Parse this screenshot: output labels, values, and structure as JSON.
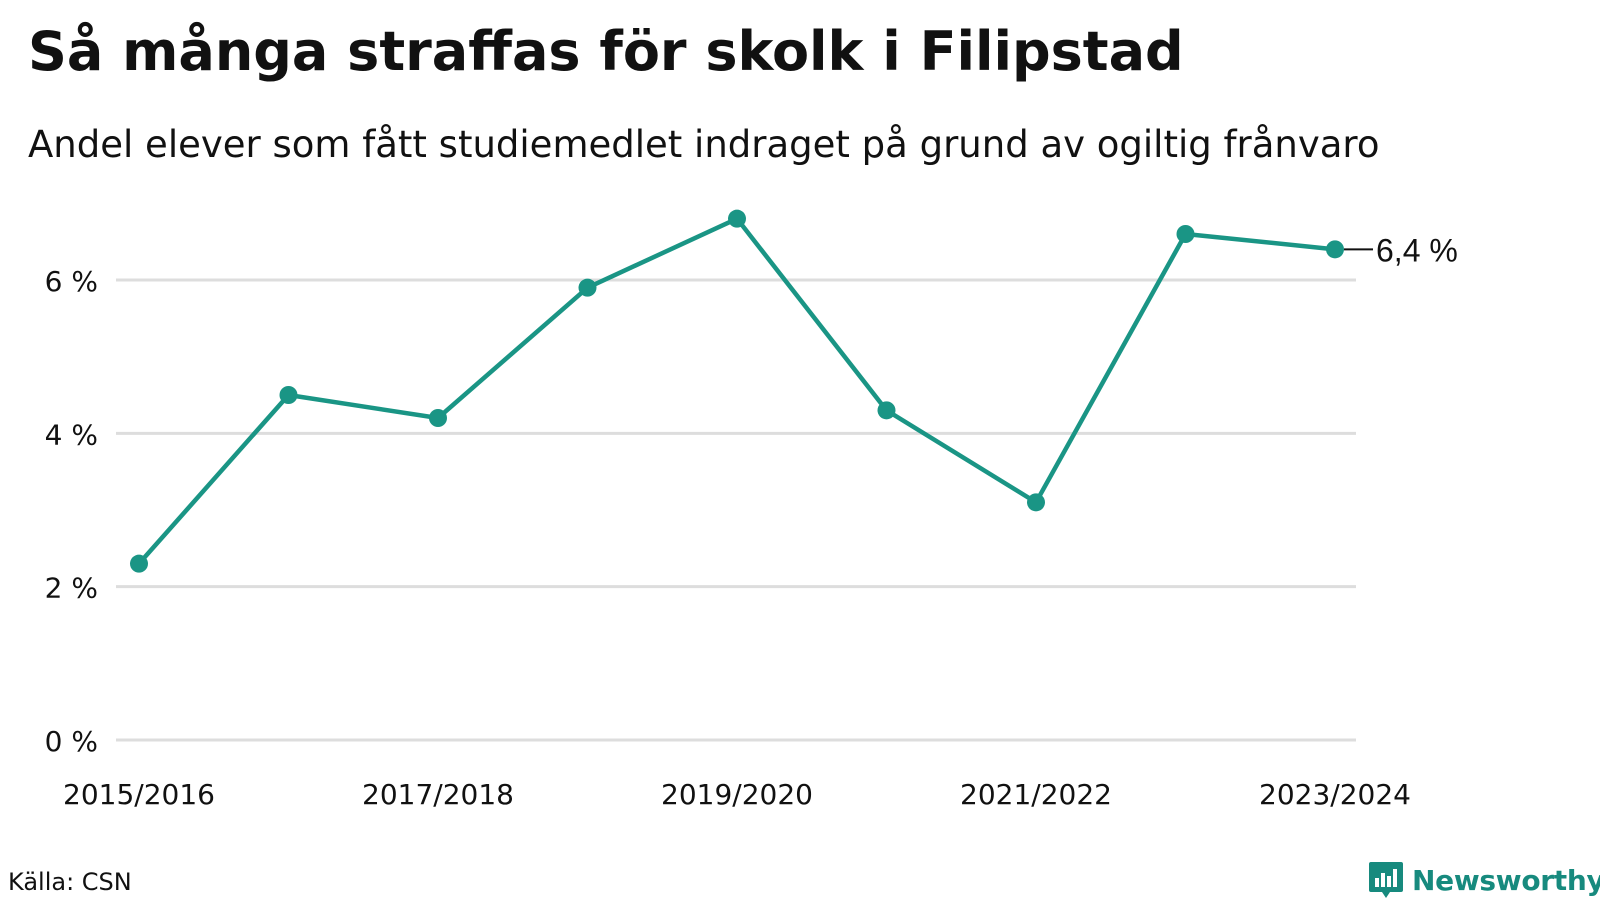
{
  "title": "Så många straffas för skolk i Filipstad",
  "subtitle": "Andel elever som fått studiemedlet indraget på grund av ogiltig frånvaro",
  "source": "Källa: CSN",
  "brand": {
    "name": "Newsworthy",
    "icon": "newsworthy-logo-icon",
    "color": "#178a7e"
  },
  "colors": {
    "line": "#1a9585",
    "grid": "#dddddd",
    "text": "#111111"
  },
  "chart_data": {
    "type": "line",
    "title": "",
    "xlabel": "",
    "ylabel": "",
    "categories": [
      "2015/2016",
      "2016/2017",
      "2017/2018",
      "2018/2019",
      "2019/2020",
      "2020/2021",
      "2021/2022",
      "2022/2023",
      "2023/2024"
    ],
    "x_tick_labels": [
      "2015/2016",
      "2017/2018",
      "2019/2020",
      "2021/2022",
      "2023/2024"
    ],
    "y_ticks": [
      0,
      2,
      4,
      6
    ],
    "y_tick_labels": [
      "0 %",
      "2 %",
      "4 %",
      "6 %"
    ],
    "ylim": [
      0,
      7
    ],
    "grid": true,
    "series": [
      {
        "values": [
          2.3,
          4.5,
          4.2,
          5.9,
          6.8,
          4.3,
          3.1,
          6.6,
          6.4
        ]
      }
    ],
    "end_label": "6,4 %"
  }
}
